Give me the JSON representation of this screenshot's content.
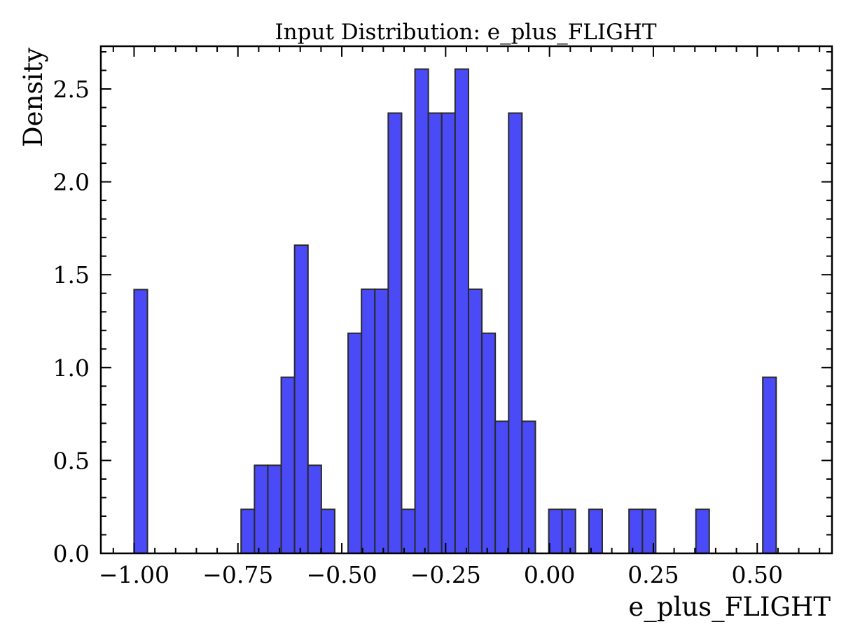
{
  "chart_data": {
    "type": "bar",
    "title": "Input Distribution: e_plus_FLIGHT",
    "xlabel": "e_plus_FLIGHT",
    "ylabel": "Density",
    "xlim": [
      -1.08,
      0.68
    ],
    "ylim": [
      0.0,
      2.73
    ],
    "xticks": [
      -1.0,
      -0.75,
      -0.5,
      -0.25,
      0.0,
      0.25,
      0.5
    ],
    "xtick_labels": [
      "−1.00",
      "−0.75",
      "−0.50",
      "−0.25",
      "0.00",
      "0.25",
      "0.50"
    ],
    "yticks": [
      0.0,
      0.5,
      1.0,
      1.5,
      2.0,
      2.5
    ],
    "ytick_labels": [
      "0.0",
      "0.5",
      "1.0",
      "1.5",
      "2.0",
      "2.5"
    ],
    "bin_start": -1.0,
    "bin_width": 0.0322,
    "values": [
      1.42,
      0,
      0,
      0,
      0,
      0,
      0,
      0,
      0.237,
      0.474,
      0.474,
      0.948,
      1.659,
      0.474,
      0.237,
      0,
      1.185,
      1.422,
      1.422,
      2.37,
      0.237,
      2.607,
      2.37,
      2.37,
      2.607,
      1.422,
      1.185,
      0.711,
      2.37,
      0.711,
      0,
      0.237,
      0.237,
      0,
      0.237,
      0,
      0,
      0.237,
      0.237,
      0,
      0,
      0,
      0.237,
      0,
      0,
      0,
      0,
      0.948
    ],
    "bar_color": "#4a4af7",
    "edge_color": "#2a2a2a",
    "grid": false
  }
}
